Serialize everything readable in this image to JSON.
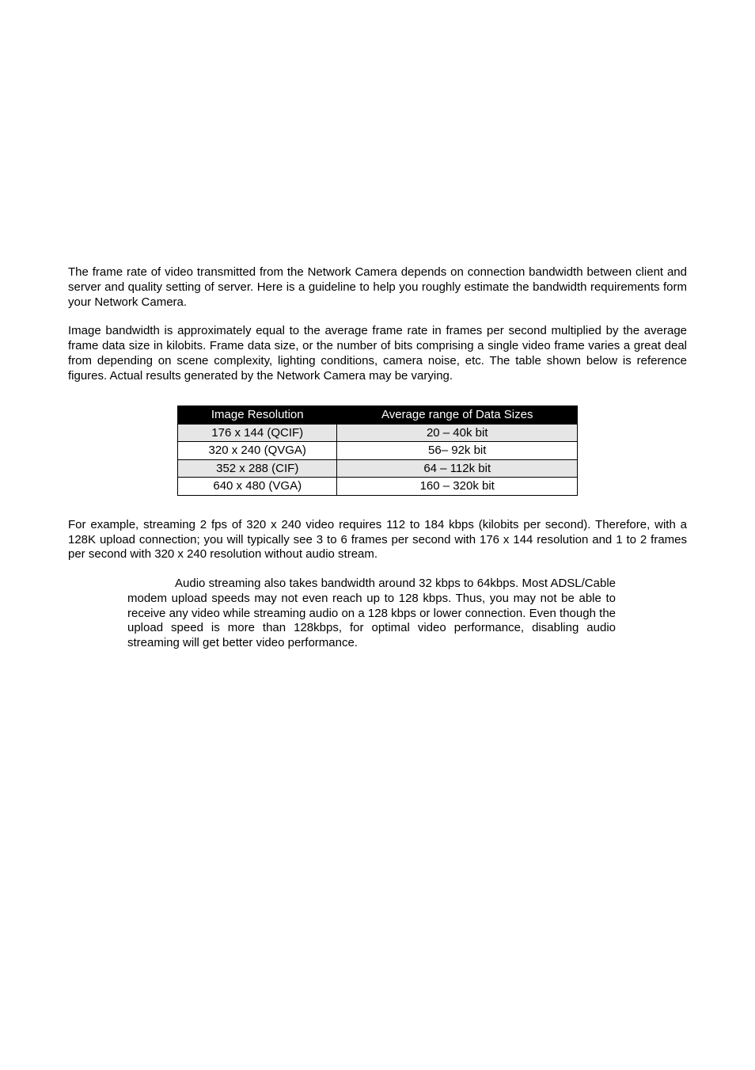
{
  "p1": "The frame rate of video transmitted from the Network Camera depends on connection bandwidth between client and server and quality setting of server. Here is a guideline to help you roughly estimate the bandwidth requirements form your Network Camera.",
  "p2": "Image bandwidth is approximately equal to the average frame rate in frames per second multiplied by the average frame data size in kilobits. Frame data size, or the number of bits comprising a single video frame varies a great deal from depending on scene complexity, lighting conditions, camera noise, etc. The table shown below is reference figures. Actual results generated by the Network Camera may be varying.",
  "table": {
    "columns": [
      "Image Resolution",
      "Average range of Data Sizes"
    ],
    "rows": [
      {
        "cells": [
          "176 x 144 (QCIF)",
          "20 – 40k bit"
        ],
        "shaded": true
      },
      {
        "cells": [
          "320 x 240 (QVGA)",
          "56– 92k bit"
        ],
        "shaded": false
      },
      {
        "cells": [
          "352 x 288 (CIF)",
          "64 – 112k bit"
        ],
        "shaded": true
      },
      {
        "cells": [
          "640 x 480 (VGA)",
          "160 – 320k bit"
        ],
        "shaded": false
      }
    ]
  },
  "p3": "For example, streaming 2 fps of 320 x 240 video requires 112 to 184 kbps (kilobits per second). Therefore, with a 128K upload connection; you will typically see 3 to 6 frames per second with 176 x 144 resolution and 1 to 2 frames per second with 320 x 240 resolution without audio stream.",
  "p4": "Audio streaming also takes bandwidth around 32 kbps to 64kbps. Most ADSL/Cable modem upload speeds may not even reach up to 128 kbps. Thus, you may not be able to receive any video while streaming audio on a 128 kbps or lower connection. Even though the upload speed is more than 128kbps, for optimal video performance, disabling audio streaming will get better video performance."
}
